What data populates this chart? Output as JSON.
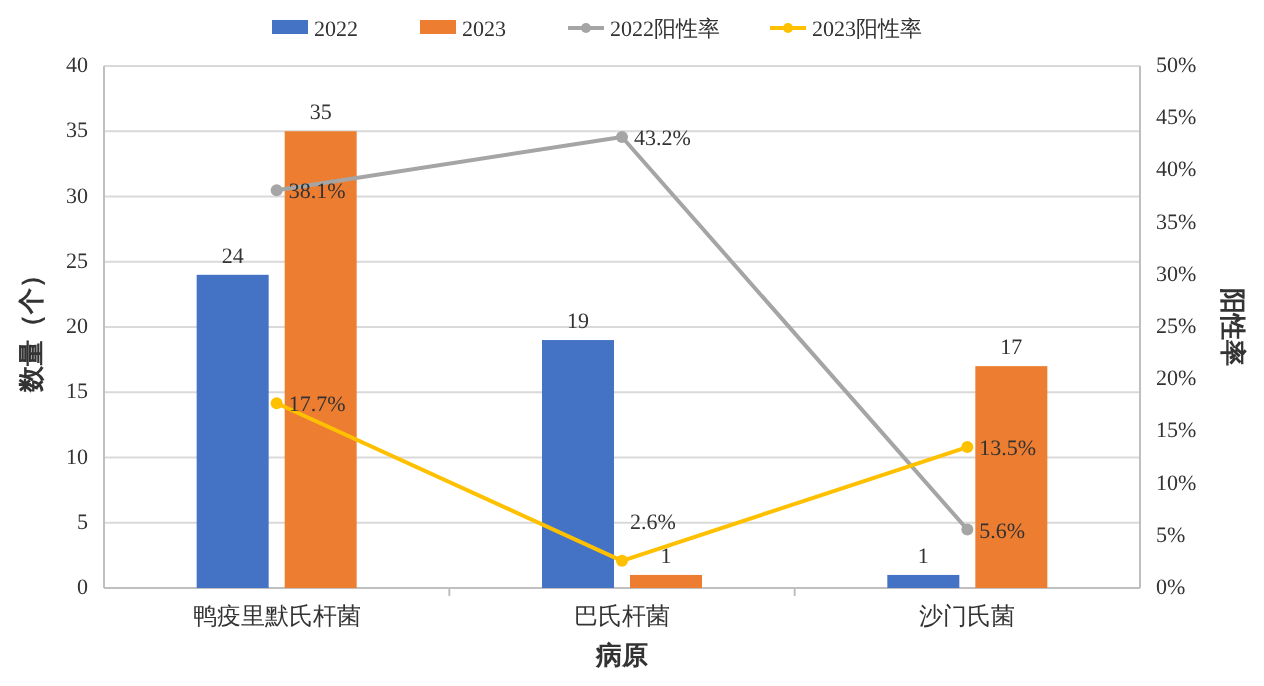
{
  "chart_data": {
    "type": "bar",
    "xlabel": "病原",
    "ylabel": "数量（个）",
    "y2label": "阳性率",
    "categories": [
      "鸭疫里默氏杆菌",
      "巴氏杆菌",
      "沙门氏菌"
    ],
    "series": [
      {
        "name": "2022",
        "type": "bar",
        "color": "#4472c4",
        "values": [
          24,
          19,
          1
        ],
        "value_labels": [
          "24",
          "19",
          "1"
        ]
      },
      {
        "name": "2023",
        "type": "bar",
        "color": "#ed7d31",
        "values": [
          35,
          1,
          17
        ],
        "value_labels": [
          "35",
          "1",
          "17"
        ]
      },
      {
        "name": "2022阳性率",
        "type": "line",
        "axis": "y2",
        "color": "#a5a5a5",
        "marker": "circle",
        "values": [
          38.1,
          43.2,
          5.6
        ],
        "value_labels": [
          "38.1%",
          "43.2%",
          "5.6%"
        ]
      },
      {
        "name": "2023阳性率",
        "type": "line",
        "axis": "y2",
        "color": "#ffc000",
        "marker": "circle",
        "values": [
          17.7,
          2.6,
          13.5
        ],
        "value_labels": [
          "17.7%",
          "2.6%",
          "13.5%"
        ]
      }
    ],
    "ylim": [
      0,
      40
    ],
    "yticks": [
      0,
      5,
      10,
      15,
      20,
      25,
      30,
      35,
      40
    ],
    "y2lim": [
      0,
      50
    ],
    "y2ticks": [
      {
        "value": 0,
        "label": "0%"
      },
      {
        "value": 5,
        "label": "5%"
      },
      {
        "value": 10,
        "label": "10%"
      },
      {
        "value": 15,
        "label": "15%"
      },
      {
        "value": 20,
        "label": "20%"
      },
      {
        "value": 25,
        "label": "25%"
      },
      {
        "value": 30,
        "label": "30%"
      },
      {
        "value": 35,
        "label": "35%"
      },
      {
        "value": 40,
        "label": "40%"
      },
      {
        "value": 45,
        "label": "45%"
      },
      {
        "value": 50,
        "label": "50%"
      }
    ],
    "grid": "y",
    "legend": "top"
  }
}
